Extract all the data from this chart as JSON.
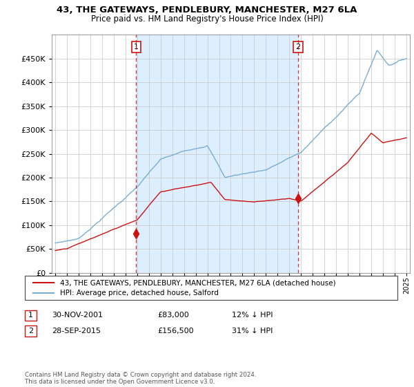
{
  "title": "43, THE GATEWAYS, PENDLEBURY, MANCHESTER, M27 6LA",
  "subtitle": "Price paid vs. HM Land Registry's House Price Index (HPI)",
  "legend_line1": "43, THE GATEWAYS, PENDLEBURY, MANCHESTER, M27 6LA (detached house)",
  "legend_line2": "HPI: Average price, detached house, Salford",
  "annotation1_label": "1",
  "annotation1_date": "30-NOV-2001",
  "annotation1_price": "£83,000",
  "annotation1_hpi": "12% ↓ HPI",
  "annotation2_label": "2",
  "annotation2_date": "28-SEP-2015",
  "annotation2_price": "£156,500",
  "annotation2_hpi": "31% ↓ HPI",
  "footer": "Contains HM Land Registry data © Crown copyright and database right 2024.\nThis data is licensed under the Open Government Licence v3.0.",
  "hpi_color": "#7aadd4",
  "price_color": "#cc1111",
  "marker1_year": 2001.92,
  "marker1_value": 83000,
  "marker2_year": 2015.75,
  "marker2_value": 156500,
  "shade_color": "#ddeeff",
  "ylim": [
    0,
    500000
  ],
  "yticks": [
    0,
    50000,
    100000,
    150000,
    200000,
    250000,
    300000,
    350000,
    400000,
    450000
  ],
  "background_color": "#ffffff",
  "grid_color": "#cccccc"
}
